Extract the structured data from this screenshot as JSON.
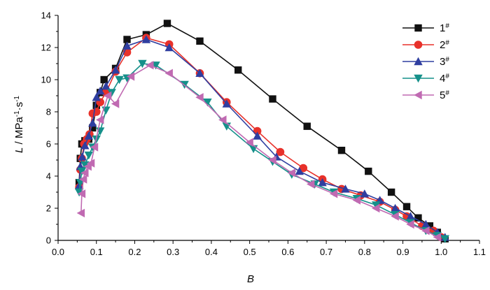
{
  "chart_data": {
    "type": "line",
    "title": "",
    "xlabel": "B",
    "ylabel": {
      "var": "L",
      "sep": " / ",
      "unit1": "MPa",
      "exp1": "-1",
      "dot": "·",
      "unit2": "s",
      "exp2": "-1"
    },
    "xlim": [
      0.0,
      1.1
    ],
    "ylim": [
      0,
      14
    ],
    "xticks": [
      "0.0",
      "0.1",
      "0.2",
      "0.3",
      "0.4",
      "0.5",
      "0.6",
      "0.7",
      "0.8",
      "0.9",
      "1.0",
      "1.1"
    ],
    "yticks": [
      "0",
      "2",
      "4",
      "6",
      "8",
      "10",
      "12",
      "14"
    ],
    "grid": false,
    "legend_position": "top-right",
    "series": [
      {
        "name": "1",
        "sup": "#",
        "color": "#111111",
        "marker": "square",
        "points": [
          [
            0.055,
            3.6
          ],
          [
            0.058,
            5.1
          ],
          [
            0.062,
            6.0
          ],
          [
            0.07,
            6.2
          ],
          [
            0.08,
            6.3
          ],
          [
            0.09,
            7.0
          ],
          [
            0.1,
            8.4
          ],
          [
            0.11,
            9.2
          ],
          [
            0.12,
            10.0
          ],
          [
            0.15,
            10.7
          ],
          [
            0.18,
            12.5
          ],
          [
            0.23,
            12.8
          ],
          [
            0.285,
            13.5
          ],
          [
            0.37,
            12.4
          ],
          [
            0.47,
            10.6
          ],
          [
            0.56,
            8.8
          ],
          [
            0.65,
            7.1
          ],
          [
            0.74,
            5.6
          ],
          [
            0.81,
            4.3
          ],
          [
            0.87,
            3.0
          ],
          [
            0.91,
            2.1
          ],
          [
            0.94,
            1.4
          ],
          [
            0.97,
            0.9
          ],
          [
            0.99,
            0.5
          ],
          [
            1.01,
            0.1
          ]
        ]
      },
      {
        "name": "2",
        "sup": "#",
        "color": "#e8312a",
        "marker": "circle",
        "points": [
          [
            0.055,
            3.3
          ],
          [
            0.058,
            4.4
          ],
          [
            0.062,
            5.1
          ],
          [
            0.068,
            6.0
          ],
          [
            0.075,
            6.3
          ],
          [
            0.082,
            6.6
          ],
          [
            0.09,
            7.9
          ],
          [
            0.1,
            8.0
          ],
          [
            0.11,
            8.6
          ],
          [
            0.125,
            9.2
          ],
          [
            0.15,
            10.5
          ],
          [
            0.18,
            11.7
          ],
          [
            0.23,
            12.6
          ],
          [
            0.29,
            12.2
          ],
          [
            0.37,
            10.4
          ],
          [
            0.44,
            8.6
          ],
          [
            0.52,
            6.8
          ],
          [
            0.58,
            5.5
          ],
          [
            0.64,
            4.5
          ],
          [
            0.69,
            3.8
          ],
          [
            0.74,
            3.2
          ],
          [
            0.79,
            2.8
          ],
          [
            0.84,
            2.4
          ],
          [
            0.88,
            1.9
          ],
          [
            0.91,
            1.5
          ],
          [
            0.95,
            0.9
          ],
          [
            0.98,
            0.6
          ],
          [
            1.0,
            0.2
          ]
        ]
      },
      {
        "name": "3",
        "sup": "#",
        "color": "#2f3ea0",
        "marker": "triangle-up",
        "points": [
          [
            0.055,
            3.4
          ],
          [
            0.058,
            4.6
          ],
          [
            0.063,
            5.2
          ],
          [
            0.07,
            5.9
          ],
          [
            0.08,
            6.5
          ],
          [
            0.09,
            7.3
          ],
          [
            0.1,
            8.9
          ],
          [
            0.11,
            9.3
          ],
          [
            0.125,
            9.6
          ],
          [
            0.15,
            10.6
          ],
          [
            0.18,
            12.1
          ],
          [
            0.23,
            12.5
          ],
          [
            0.29,
            12.0
          ],
          [
            0.37,
            10.4
          ],
          [
            0.44,
            8.5
          ],
          [
            0.52,
            6.5
          ],
          [
            0.57,
            5.2
          ],
          [
            0.63,
            4.3
          ],
          [
            0.69,
            3.6
          ],
          [
            0.75,
            3.2
          ],
          [
            0.8,
            2.9
          ],
          [
            0.84,
            2.5
          ],
          [
            0.88,
            2.0
          ],
          [
            0.92,
            1.5
          ],
          [
            0.96,
            1.0
          ],
          [
            0.99,
            0.5
          ],
          [
            1.01,
            0.2
          ]
        ]
      },
      {
        "name": "4",
        "sup": "#",
        "color": "#15908a",
        "marker": "triangle-down",
        "points": [
          [
            0.055,
            3.0
          ],
          [
            0.058,
            3.6
          ],
          [
            0.062,
            4.3
          ],
          [
            0.07,
            4.7
          ],
          [
            0.08,
            5.3
          ],
          [
            0.09,
            5.8
          ],
          [
            0.1,
            6.3
          ],
          [
            0.11,
            6.8
          ],
          [
            0.125,
            8.1
          ],
          [
            0.14,
            9.2
          ],
          [
            0.16,
            10.0
          ],
          [
            0.18,
            10.1
          ],
          [
            0.22,
            11.0
          ],
          [
            0.255,
            10.9
          ],
          [
            0.33,
            9.7
          ],
          [
            0.39,
            8.6
          ],
          [
            0.44,
            7.1
          ],
          [
            0.51,
            5.7
          ],
          [
            0.56,
            4.9
          ],
          [
            0.61,
            4.1
          ],
          [
            0.67,
            3.5
          ],
          [
            0.72,
            3.0
          ],
          [
            0.78,
            2.6
          ],
          [
            0.83,
            2.2
          ],
          [
            0.88,
            1.6
          ],
          [
            0.92,
            1.1
          ],
          [
            0.96,
            0.6
          ],
          [
            0.99,
            0.3
          ],
          [
            1.01,
            0.1
          ]
        ]
      },
      {
        "name": "5",
        "sup": "#",
        "color": "#c06ab2",
        "marker": "triangle-left",
        "points": [
          [
            0.06,
            1.7
          ],
          [
            0.062,
            2.9
          ],
          [
            0.066,
            3.8
          ],
          [
            0.07,
            4.2
          ],
          [
            0.078,
            4.6
          ],
          [
            0.086,
            4.8
          ],
          [
            0.095,
            5.8
          ],
          [
            0.11,
            7.5
          ],
          [
            0.13,
            9.0
          ],
          [
            0.15,
            8.5
          ],
          [
            0.19,
            10.2
          ],
          [
            0.24,
            10.9
          ],
          [
            0.29,
            10.4
          ],
          [
            0.37,
            8.9
          ],
          [
            0.43,
            7.5
          ],
          [
            0.5,
            6.1
          ],
          [
            0.56,
            5.0
          ],
          [
            0.61,
            4.2
          ],
          [
            0.66,
            3.5
          ],
          [
            0.72,
            2.9
          ],
          [
            0.78,
            2.5
          ],
          [
            0.83,
            2.0
          ],
          [
            0.88,
            1.5
          ],
          [
            0.92,
            1.0
          ],
          [
            0.96,
            0.6
          ],
          [
            0.99,
            0.2
          ]
        ]
      }
    ]
  }
}
